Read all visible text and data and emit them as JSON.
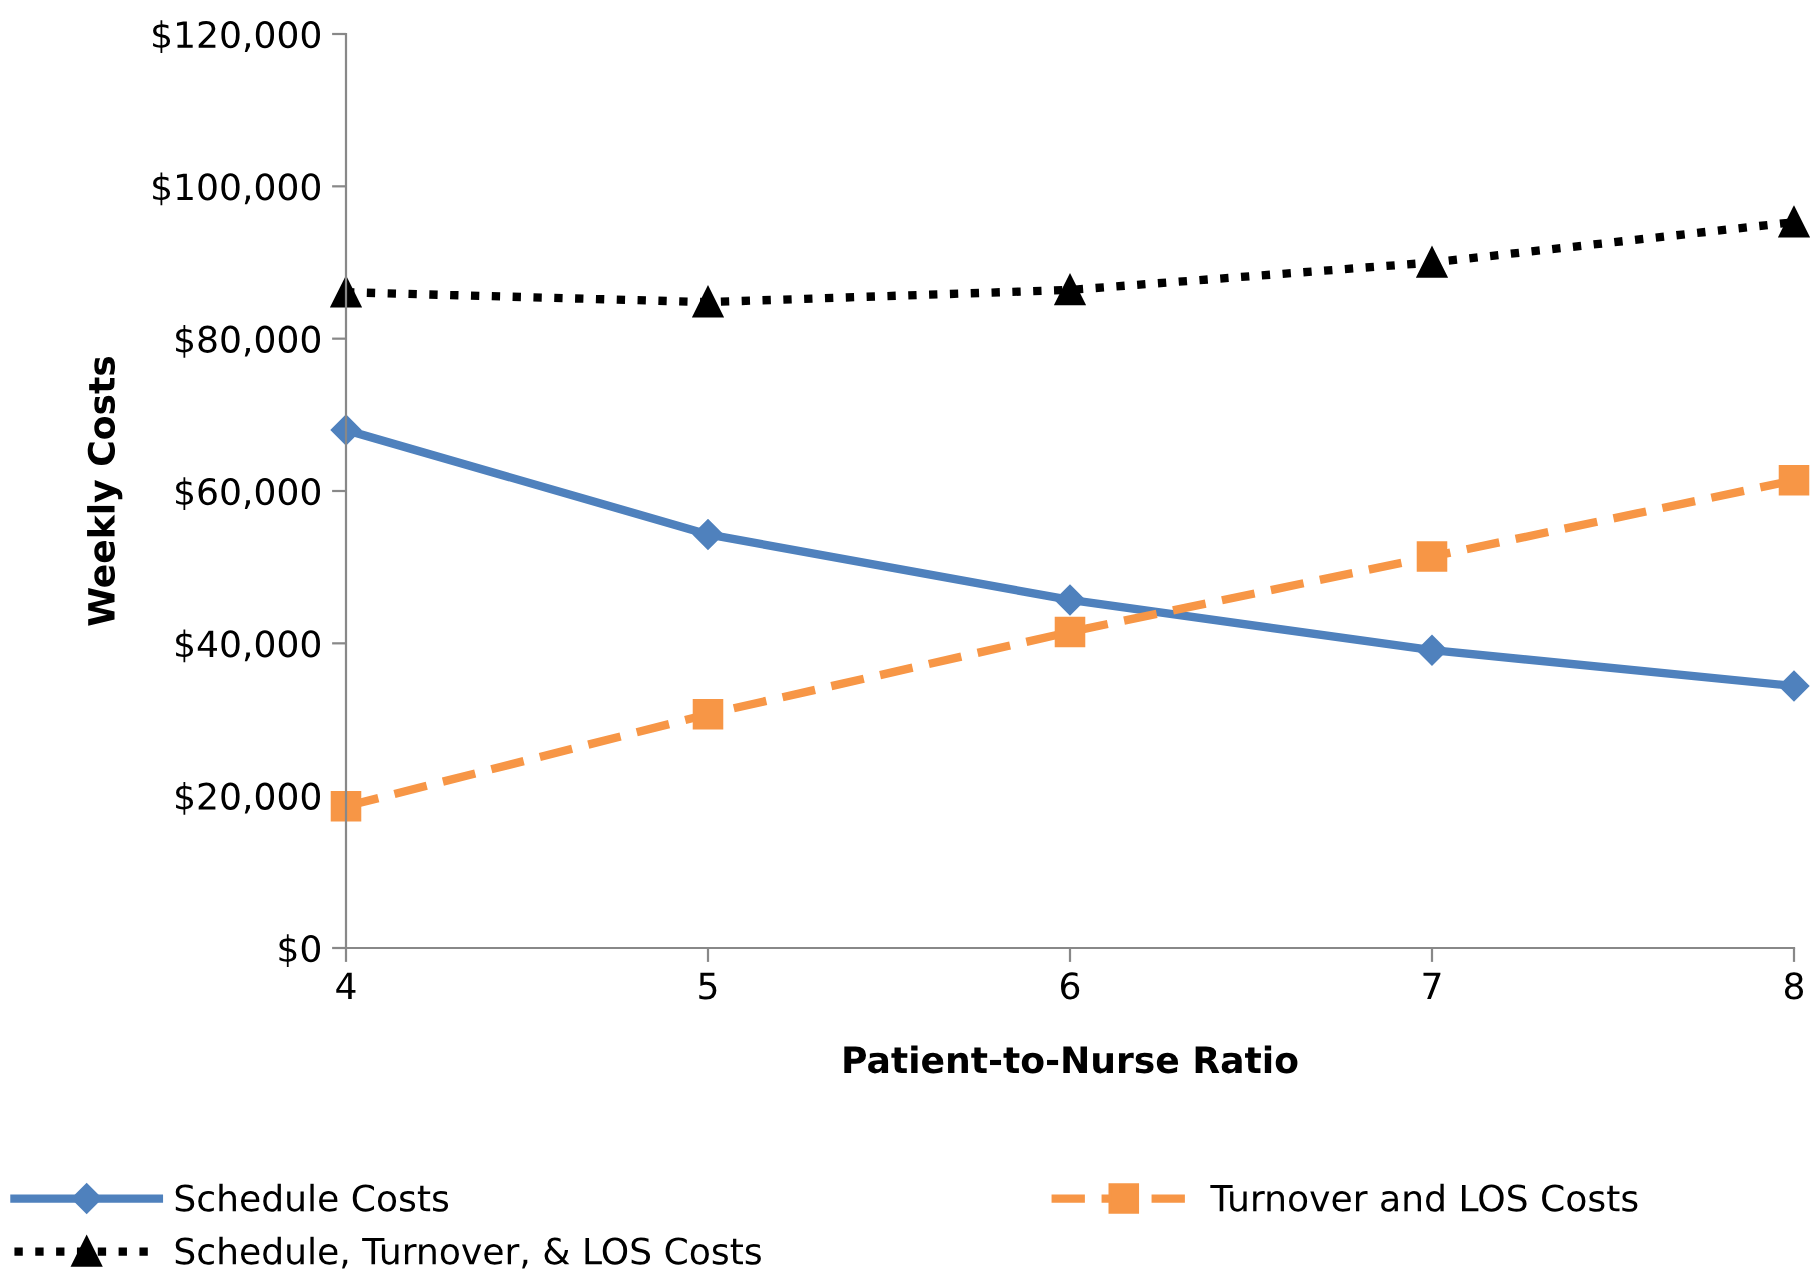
{
  "chart_data": {
    "type": "line",
    "xlabel": "Patient-to-Nurse Ratio",
    "ylabel": "Weekly Costs",
    "x": [
      4,
      5,
      6,
      7,
      8
    ],
    "series": [
      {
        "name": "Schedule Costs",
        "color": "#4f81bd",
        "marker": "diamond",
        "line_style": "solid",
        "values": [
          68000,
          54300,
          45700,
          39100,
          34400
        ]
      },
      {
        "name": "Turnover and LOS Costs",
        "color": "#f79646",
        "marker": "square",
        "line_style": "dashed",
        "values": [
          18600,
          30700,
          41500,
          51400,
          61400
        ]
      },
      {
        "name": "Schedule, Turnover, & LOS Costs",
        "color": "#000000",
        "marker": "triangle",
        "line_style": "dotted",
        "values": [
          86100,
          84800,
          86400,
          90000,
          95300
        ]
      }
    ],
    "xlim": [
      4,
      8
    ],
    "xticks": [
      4,
      5,
      6,
      7,
      8
    ],
    "ylim": [
      0,
      120000
    ],
    "yticks": [
      {
        "value": 0,
        "label": "$0"
      },
      {
        "value": 20000,
        "label": "$20,000"
      },
      {
        "value": 40000,
        "label": "$40,000"
      },
      {
        "value": 60000,
        "label": "$60,000"
      },
      {
        "value": 80000,
        "label": "$80,000"
      },
      {
        "value": 100000,
        "label": "$100,000"
      },
      {
        "value": 120000,
        "label": "$120,000"
      }
    ],
    "grid": false,
    "legend": "bottom"
  }
}
